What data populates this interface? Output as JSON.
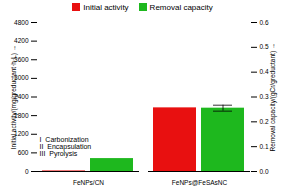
{
  "chart_data": {
    "type": "bar",
    "categories": [
      "FeNPs/CN",
      "FeNPs@FeSAsNC"
    ],
    "series": [
      {
        "name": "Initial activity",
        "color": "#e81010",
        "values": [
          18,
          2050
        ]
      },
      {
        "name": "Removal capacity",
        "color": "#1eb81e",
        "values": [
          0.052,
          0.255
        ],
        "axis": "y2",
        "errors": [
          null,
          0.012
        ]
      }
    ],
    "ylabel": "Initial activity/(mg/greductant·h·L)",
    "y2label": "Removal capacity/(gCr/greductant)",
    "ylim": [
      0,
      4800
    ],
    "yticks": [
      0,
      600,
      1200,
      1800,
      2400,
      3000,
      3600,
      4200,
      4800
    ],
    "y2lim": [
      0,
      0.6
    ],
    "y2ticks": [
      {
        "value": 0,
        "label": "0.0"
      },
      0.1,
      0.2,
      0.3,
      0.4,
      0.5,
      0.6
    ],
    "legend": "top",
    "annotations": [
      "I  Carbonization",
      "II  Encapsulation",
      "III  Pyrolysis"
    ],
    "grid": false
  }
}
